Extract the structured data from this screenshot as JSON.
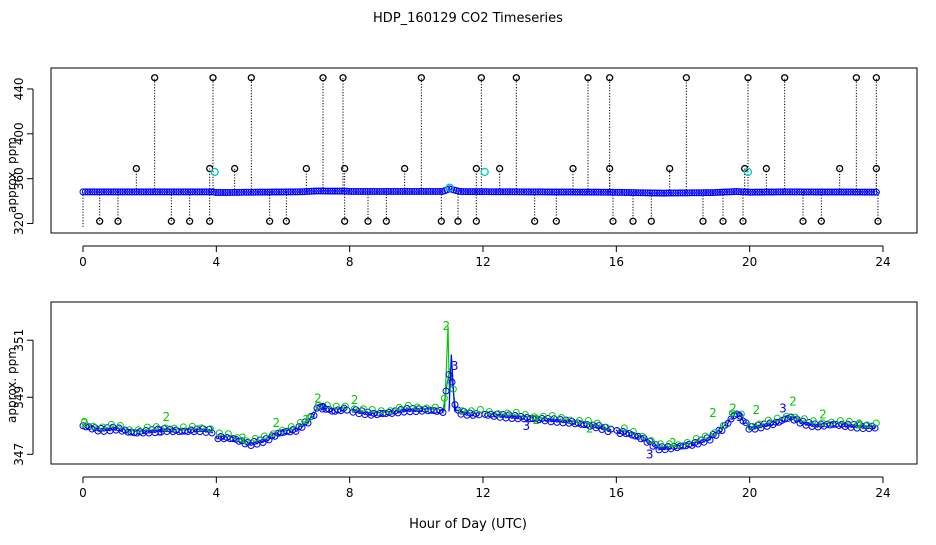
{
  "title": "HDP_160129  CO2 Timeseries",
  "xlabel": "Hour of Day (UTC)",
  "colors": {
    "raw": "#000000",
    "flag": "#00c8c8",
    "blue": "#0000ff",
    "green": "#00cc00",
    "frame": "#000000"
  },
  "chart_data": [
    {
      "type": "scatter",
      "title": "HDP_160129  CO2 Timeseries",
      "ylabel": "approx. ppm",
      "xlim": [
        0,
        24
      ],
      "ylim": [
        316,
        456
      ],
      "x_ticks": [
        0,
        4,
        8,
        12,
        16,
        20,
        24
      ],
      "y_ticks": [
        320,
        360,
        400,
        440
      ],
      "baseline": [
        [
          0.0,
          348.2
        ],
        [
          3.9,
          348.2
        ],
        [
          4.0,
          347.6
        ],
        [
          6.6,
          348.3
        ],
        [
          7.0,
          349.0
        ],
        [
          7.9,
          348.8
        ],
        [
          8.0,
          348.6
        ],
        [
          10.8,
          348.6
        ],
        [
          11.0,
          351.0
        ],
        [
          11.3,
          348.5
        ],
        [
          12.0,
          348.4
        ],
        [
          15.8,
          347.9
        ],
        [
          16.0,
          347.8
        ],
        [
          17.4,
          347.1
        ],
        [
          18.9,
          347.6
        ],
        [
          19.6,
          348.5
        ],
        [
          20.0,
          347.9
        ],
        [
          21.0,
          348.2
        ],
        [
          23.8,
          348.0
        ]
      ],
      "high_spikes": [
        2.15,
        3.9,
        5.05,
        7.2,
        7.8,
        10.15,
        11.95,
        13.0,
        15.15,
        15.8,
        18.1,
        19.95,
        21.05,
        23.2,
        23.8
      ],
      "mid_spikes": [
        1.6,
        3.8,
        4.55,
        6.7,
        7.85,
        9.65,
        11.8,
        12.5,
        14.7,
        15.8,
        17.6,
        19.85,
        20.5,
        22.7,
        23.8
      ],
      "low_spikes": [
        0.5,
        1.05,
        2.65,
        3.2,
        3.8,
        5.6,
        6.1,
        7.85,
        8.55,
        9.1,
        10.75,
        11.25,
        11.8,
        13.55,
        14.2,
        15.9,
        16.5,
        17.05,
        18.6,
        19.2,
        19.8,
        21.6,
        22.15,
        23.85
      ],
      "flagged_points": [
        [
          3.95,
          366
        ],
        [
          12.05,
          366
        ],
        [
          19.95,
          366
        ],
        [
          11.0,
          352
        ]
      ]
    },
    {
      "type": "scatter",
      "ylabel": "approx. ppm",
      "xlim": [
        0,
        24
      ],
      "ylim": [
        346.8,
        352.2
      ],
      "x_ticks": [
        0,
        4,
        8,
        12,
        16,
        20,
        24
      ],
      "y_ticks": [
        347,
        349,
        351
      ],
      "series": [
        {
          "values": [
            [
              0.0,
              348.0
            ],
            [
              0.5,
              347.85
            ],
            [
              1.0,
              347.9
            ],
            [
              1.5,
              347.75
            ],
            [
              2.0,
              347.8
            ],
            [
              2.5,
              347.85
            ],
            [
              3.0,
              347.8
            ],
            [
              3.5,
              347.85
            ],
            [
              3.9,
              347.8
            ],
            [
              4.0,
              347.6
            ],
            [
              4.5,
              347.55
            ],
            [
              5.0,
              347.35
            ],
            [
              5.5,
              347.5
            ],
            [
              5.9,
              347.75
            ],
            [
              6.4,
              347.85
            ],
            [
              6.8,
              348.2
            ],
            [
              7.1,
              348.7
            ],
            [
              7.5,
              348.5
            ],
            [
              7.9,
              348.6
            ],
            [
              8.2,
              348.5
            ],
            [
              8.7,
              348.4
            ],
            [
              9.2,
              348.45
            ],
            [
              9.7,
              348.55
            ],
            [
              10.3,
              348.55
            ],
            [
              10.8,
              348.5
            ],
            [
              11.0,
              350.0
            ],
            [
              11.2,
              348.5
            ],
            [
              11.6,
              348.4
            ],
            [
              12.0,
              348.4
            ],
            [
              12.5,
              348.35
            ],
            [
              13.0,
              348.3
            ],
            [
              13.5,
              348.25
            ],
            [
              14.0,
              348.2
            ],
            [
              14.5,
              348.15
            ],
            [
              15.0,
              348.05
            ],
            [
              15.5,
              347.95
            ],
            [
              15.9,
              347.8
            ],
            [
              16.3,
              347.75
            ],
            [
              16.8,
              347.55
            ],
            [
              17.3,
              347.2
            ],
            [
              17.8,
              347.25
            ],
            [
              18.3,
              347.35
            ],
            [
              18.8,
              347.55
            ],
            [
              19.2,
              347.9
            ],
            [
              19.6,
              348.45
            ],
            [
              19.8,
              348.2
            ],
            [
              20.0,
              347.9
            ],
            [
              20.4,
              348.0
            ],
            [
              20.8,
              348.1
            ],
            [
              21.2,
              348.3
            ],
            [
              21.6,
              348.1
            ],
            [
              22.0,
              348.0
            ],
            [
              22.5,
              348.05
            ],
            [
              23.0,
              348.0
            ],
            [
              23.5,
              347.95
            ],
            [
              23.8,
              347.95
            ]
          ]
        },
        {
          "values": [
            [
              0.05,
              348.1
            ],
            [
              2.5,
              348.3
            ],
            [
              4.8,
              347.55
            ],
            [
              5.8,
              348.1
            ],
            [
              6.7,
              348.2
            ],
            [
              7.05,
              348.95
            ],
            [
              8.15,
              348.9
            ],
            [
              10.9,
              351.5
            ],
            [
              13.6,
              348.2
            ],
            [
              15.2,
              347.9
            ],
            [
              17.7,
              347.4
            ],
            [
              18.9,
              348.45
            ],
            [
              19.5,
              348.6
            ],
            [
              20.2,
              348.55
            ],
            [
              21.3,
              348.85
            ],
            [
              22.2,
              348.4
            ],
            [
              23.3,
              348.05
            ]
          ]
        }
      ]
    }
  ]
}
